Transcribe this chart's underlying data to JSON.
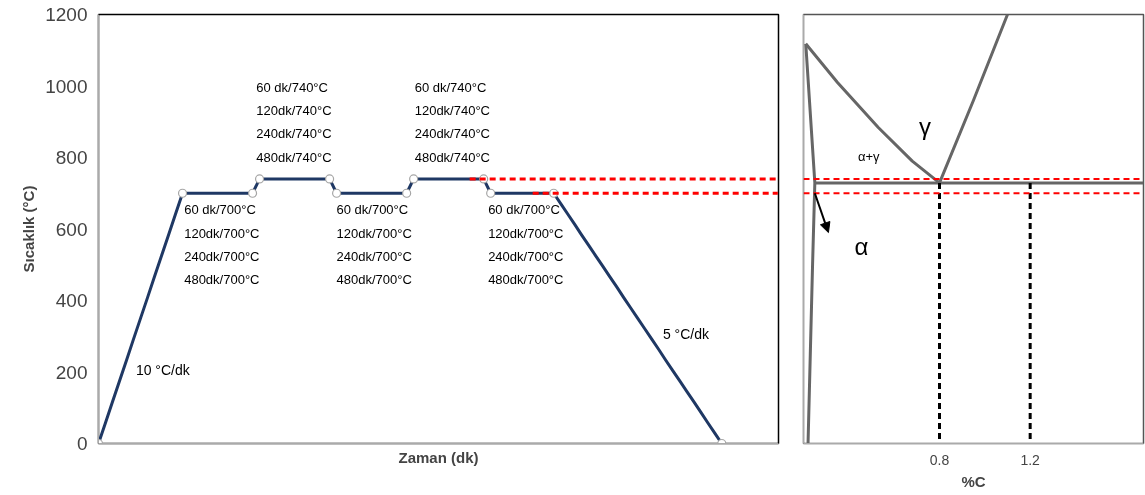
{
  "chart_data": [
    {
      "type": "line",
      "xlabel": "Zaman (dk)",
      "ylabel": "Sıcaklık (°C)",
      "ylim": [
        0,
        1200
      ],
      "yticks": [
        0,
        200,
        400,
        600,
        800,
        1000,
        1200
      ],
      "tick_labels": "y",
      "grid": false,
      "categories": [
        null,
        null,
        null,
        null,
        null,
        null,
        null,
        null,
        null,
        null,
        null,
        null,
        null,
        null,
        null,
        null,
        null,
        null,
        null,
        null,
        null,
        null,
        null,
        null,
        null,
        null,
        null,
        null,
        null,
        null,
        null,
        null,
        null,
        null,
        null,
        null,
        null,
        null,
        null,
        null,
        null,
        null,
        null,
        null,
        null,
        null,
        null,
        null,
        null,
        null,
        null,
        null,
        null,
        null,
        null,
        null,
        null,
        null,
        null,
        null,
        null,
        null,
        null,
        null,
        null,
        null,
        null,
        null,
        null,
        null,
        null,
        null,
        null,
        null,
        null,
        null,
        null,
        null,
        null,
        null,
        null,
        null,
        null,
        null,
        null,
        null,
        null,
        null,
        null,
        null,
        null,
        null,
        null,
        null,
        null,
        null,
        null,
        null
      ],
      "series": [
        {
          "color": "#1f3864",
          "marker": "none",
          "values": [
            0,
            58,
            117,
            175,
            233,
            292,
            350,
            408,
            467,
            525,
            583,
            642,
            700,
            700,
            700,
            700,
            700,
            700,
            700,
            700,
            700,
            700,
            700,
            740,
            740,
            740,
            740,
            740,
            740,
            740,
            740,
            740,
            740,
            740,
            700,
            700,
            700,
            700,
            700,
            700,
            700,
            700,
            700,
            700,
            700,
            740,
            740,
            740,
            740,
            740,
            740,
            740,
            740,
            740,
            740,
            740,
            700,
            700,
            700,
            700,
            700,
            700,
            700,
            700,
            700,
            700,
            671,
            642,
            613,
            583,
            554,
            525,
            496,
            467,
            438,
            408,
            379,
            350,
            321,
            292,
            263,
            233,
            204,
            175,
            146,
            117,
            88,
            58,
            29,
            0,
            null,
            null,
            null,
            null,
            null,
            null,
            null,
            null
          ]
        },
        {
          "type": "scatter",
          "color": "#a6a6a6",
          "marker": "circle",
          "values": [
            0,
            null,
            null,
            null,
            null,
            null,
            null,
            null,
            null,
            null,
            null,
            null,
            700,
            null,
            null,
            null,
            null,
            null,
            null,
            null,
            null,
            null,
            700,
            740,
            null,
            null,
            null,
            null,
            null,
            null,
            null,
            null,
            null,
            740,
            700,
            null,
            null,
            null,
            null,
            null,
            null,
            null,
            null,
            null,
            700,
            740,
            null,
            null,
            null,
            null,
            null,
            null,
            null,
            null,
            null,
            740,
            700,
            null,
            null,
            null,
            null,
            null,
            null,
            null,
            null,
            700,
            null,
            null,
            null,
            null,
            null,
            null,
            null,
            null,
            null,
            null,
            null,
            null,
            null,
            null,
            null,
            null,
            null,
            null,
            null,
            null,
            null,
            null,
            null,
            0,
            null,
            null,
            null,
            null,
            null,
            null,
            null,
            null
          ]
        },
        {
          "color": "#ff0000",
          "marker": "none",
          "line_style": "dashed",
          "values": [
            null,
            null,
            null,
            null,
            null,
            null,
            null,
            null,
            null,
            null,
            null,
            null,
            null,
            null,
            null,
            null,
            null,
            null,
            null,
            null,
            null,
            null,
            null,
            null,
            null,
            null,
            null,
            null,
            null,
            null,
            null,
            null,
            null,
            null,
            null,
            null,
            null,
            null,
            null,
            null,
            null,
            null,
            null,
            null,
            null,
            null,
            null,
            null,
            null,
            null,
            null,
            null,
            null,
            740,
            740,
            740,
            740,
            740,
            740,
            740,
            740,
            740,
            740,
            740,
            740,
            740,
            740,
            740,
            740,
            740,
            740,
            740,
            740,
            740,
            740,
            740,
            740,
            740,
            740,
            740,
            740,
            740,
            740,
            740,
            740,
            740,
            740,
            740,
            740,
            740,
            740,
            740,
            740,
            740,
            740,
            740,
            740,
            740
          ]
        },
        {
          "color": "#ff0000",
          "marker": "none",
          "line_style": "dashed",
          "values": [
            null,
            null,
            null,
            null,
            null,
            null,
            null,
            null,
            null,
            null,
            null,
            null,
            null,
            null,
            null,
            null,
            null,
            null,
            null,
            null,
            null,
            null,
            null,
            null,
            null,
            null,
            null,
            null,
            null,
            null,
            null,
            null,
            null,
            null,
            null,
            null,
            null,
            null,
            null,
            null,
            null,
            null,
            null,
            null,
            null,
            null,
            null,
            null,
            null,
            null,
            null,
            null,
            null,
            null,
            null,
            null,
            null,
            null,
            null,
            null,
            null,
            null,
            700,
            700,
            700,
            700,
            700,
            700,
            700,
            700,
            700,
            700,
            700,
            700,
            700,
            700,
            700,
            700,
            700,
            700,
            700,
            700,
            700,
            700,
            700,
            700,
            700,
            700,
            700,
            700,
            700,
            700,
            700,
            700,
            700,
            700,
            700,
            700
          ]
        }
      ],
      "annotations": [
        "60 dk/740°C\n120dk/740°C\n240dk/740°C\n480dk/740°C",
        "60 dk/740°C\n120dk/740°C\n240dk/740°C\n480dk/740°C",
        "60 dk/700°C\n120dk/700°C\n240dk/700°C\n480dk/700°C",
        "60 dk/700°C\n120dk/700°C\n240dk/700°C\n480dk/700°C",
        "60 dk/700°C\n120dk/700°C\n240dk/700°C\n480dk/700°C",
        "10 °C/dk",
        "5 °C/dk"
      ]
    },
    {
      "type": "line",
      "xlabel": "%C",
      "xlim": [
        0.2,
        1.7
      ],
      "ylim": [
        0,
        1200
      ],
      "xticks": [
        0.8,
        1.2
      ],
      "tick_labels": "x",
      "grid": false,
      "series": [
        {
          "color": "#666666",
          "x": [
            0.21,
            0.35,
            0.53,
            0.68,
            0.8,
            0.95,
            1.1
          ],
          "values": [
            1118,
            1010,
            884,
            790,
            729,
            960,
            1200
          ]
        },
        {
          "color": "#666666",
          "x": [
            0.21,
            0.25,
            0.24,
            0.23,
            0.22
          ],
          "values": [
            1118,
            729,
            500,
            250,
            0
          ]
        },
        {
          "color": "#666666",
          "x": [
            0.25,
            1.7
          ],
          "values": [
            729,
            729
          ]
        },
        {
          "color": "#000000",
          "x": [
            0.8,
            0.8
          ],
          "values": [
            729,
            0
          ],
          "line_style": "dashed"
        },
        {
          "color": "#000000",
          "x": [
            1.2,
            1.2
          ],
          "values": [
            729,
            0
          ],
          "line_style": "dashed"
        }
      ],
      "ref_lines": [
        {
          "axis": "y",
          "value": 740,
          "color": "#ff0000",
          "line_style": "dashed"
        },
        {
          "axis": "y",
          "value": 700,
          "color": "#ff0000",
          "line_style": "dashed"
        }
      ],
      "annotations": [
        "γ",
        "α+γ",
        "α"
      ]
    }
  ]
}
